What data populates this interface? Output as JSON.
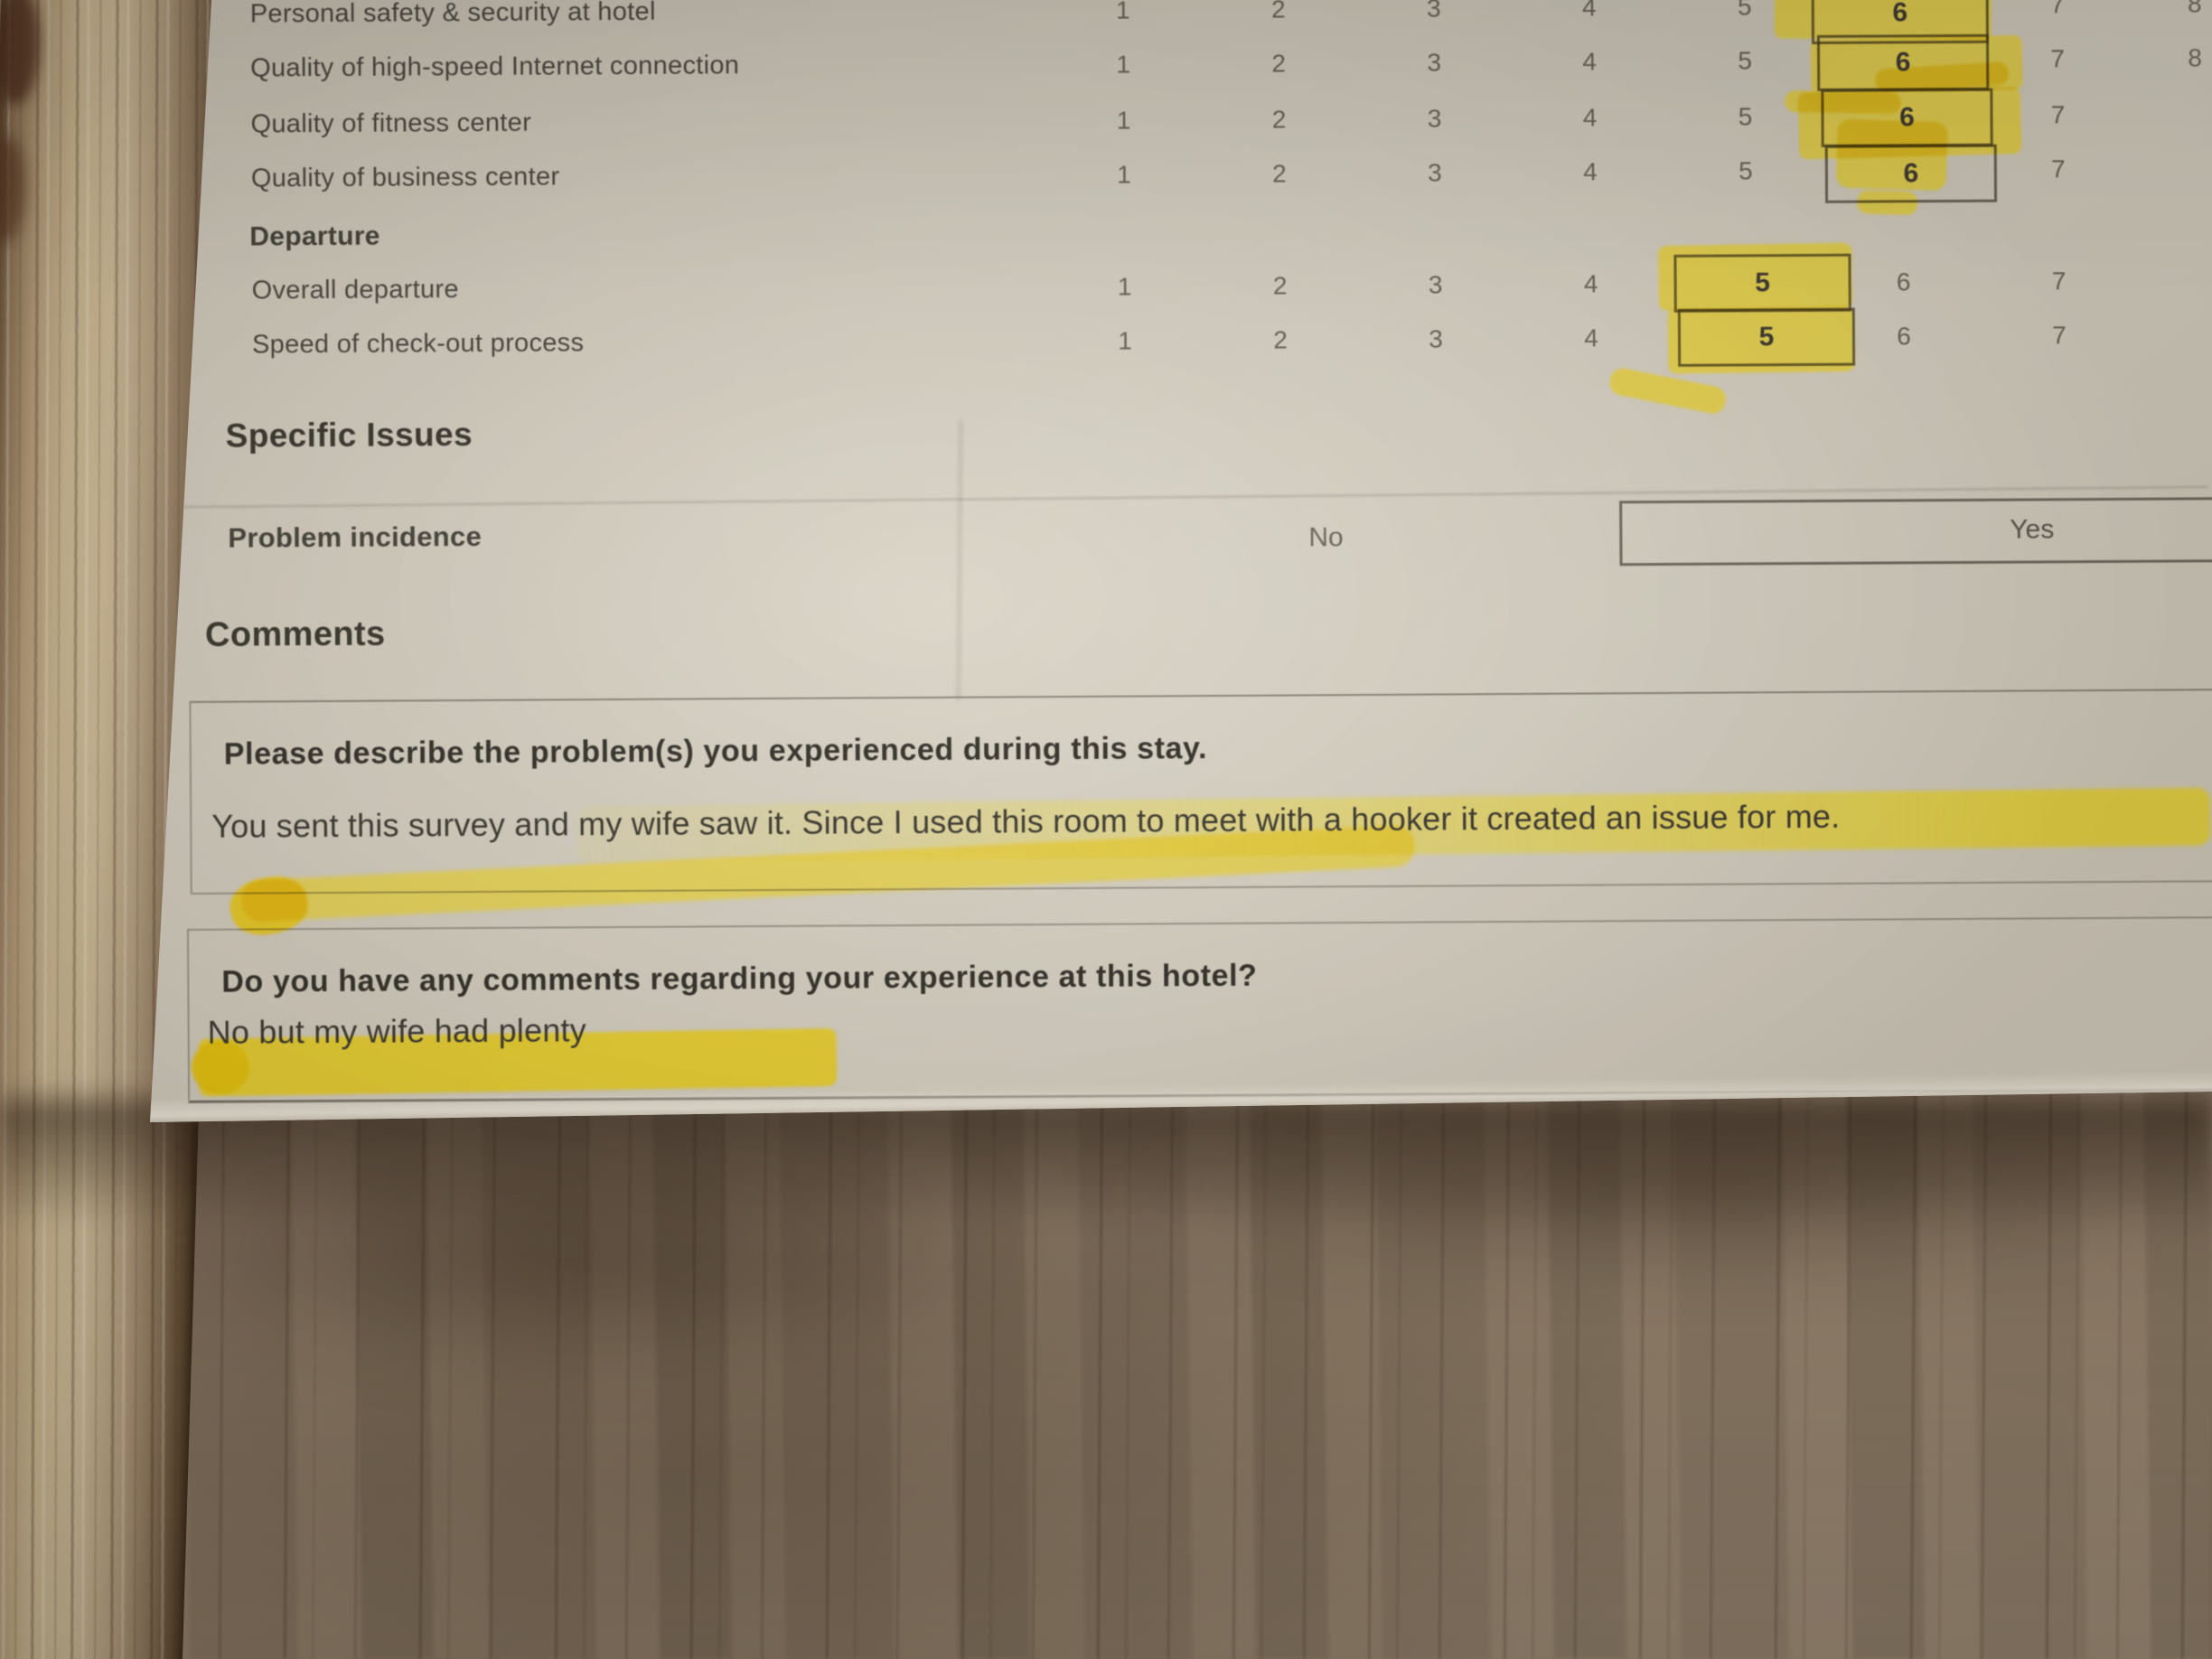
{
  "photo": {
    "description": "Printed hotel guest survey page on a wooden table, answers marked with yellow highlighter"
  },
  "colors": {
    "highlighter": "#f1da3a",
    "paper": "#d8d2c4",
    "wood": "#94826f",
    "ink": "#45423a"
  },
  "ratings_table": {
    "scale": [
      "1",
      "2",
      "3",
      "4",
      "5",
      "6",
      "7"
    ],
    "scale_offpage": "8",
    "rows": [
      {
        "label": "Personal safety & security at hotel",
        "selected": "6"
      },
      {
        "label": "Quality of high-speed Internet connection",
        "selected": "6"
      },
      {
        "label": "Quality of fitness center",
        "selected": "6"
      },
      {
        "label": "Quality of business center",
        "selected": "6"
      }
    ],
    "departure_header": "Departure",
    "departure_rows": [
      {
        "label": "Overall departure",
        "selected": "5"
      },
      {
        "label": "Speed of check-out process",
        "selected": "5"
      }
    ]
  },
  "specific_issues": {
    "heading": "Specific Issues",
    "problem_label": "Problem incidence",
    "option_no": "No",
    "option_yes": "Yes",
    "selected_option": "Yes"
  },
  "comments": {
    "heading": "Comments",
    "question1": "Please describe the problem(s) you experienced during this stay.",
    "answer1": "You sent this survey and my wife saw it. Since I used this room to meet with a hooker it created an issue for me.",
    "question2": "Do you have any comments regarding your experience at this hotel?",
    "answer2": "No but my wife had plenty"
  }
}
